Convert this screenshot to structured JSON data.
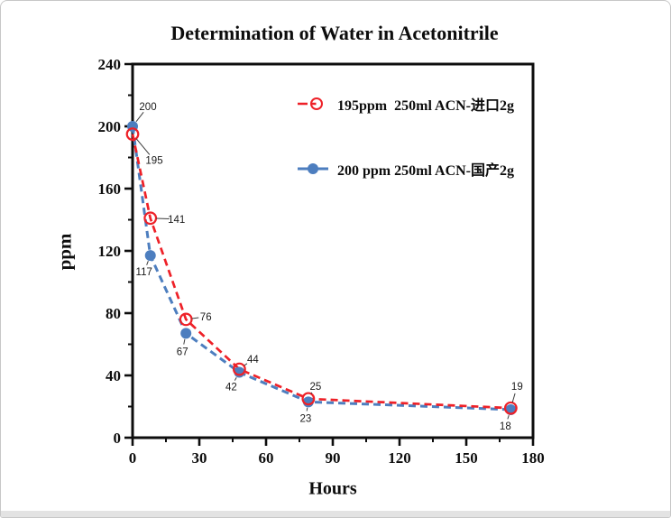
{
  "frame": {
    "background": "#ffffff",
    "border_color": "#c7c7c7",
    "bottom_strip_color": "#e3e3e3"
  },
  "chart_data": {
    "type": "line",
    "title": "Determination of Water in Acetonitrile",
    "xlabel": "Hours",
    "ylabel": "ppm",
    "xlim": [
      0,
      180
    ],
    "ylim": [
      0,
      240
    ],
    "x_major_ticks": [
      0,
      30,
      60,
      90,
      120,
      150,
      180
    ],
    "x_minor_step": 15,
    "y_major_ticks": [
      0,
      40,
      80,
      120,
      160,
      200,
      240
    ],
    "y_minor_step": 20,
    "grid": false,
    "axis_color": "#0d0d0d",
    "legend_position": "inside-top-center",
    "x": [
      0,
      8,
      24,
      48,
      79,
      170
    ],
    "series": [
      {
        "key": "imported",
        "name": "195ppm  250ml ACN-进口2g",
        "color": "#ee2128",
        "marker": "open-circle",
        "line_style": "dashed",
        "values": [
          195,
          141,
          76,
          44,
          25,
          19
        ],
        "label_offsets": [
          [
            24,
            29
          ],
          [
            29,
            1
          ],
          [
            22,
            -3
          ],
          [
            15,
            -11
          ],
          [
            8,
            -14
          ],
          [
            7,
            -24
          ]
        ]
      },
      {
        "key": "domestic",
        "name": "200 ppm 250ml ACN-国产2g",
        "color": "#4d7ebf",
        "marker": "filled-circle",
        "line_style": "dashed",
        "values": [
          200,
          117,
          67,
          42,
          23,
          18
        ],
        "label_offsets": [
          [
            17,
            -22
          ],
          [
            -7,
            18
          ],
          [
            -4,
            20
          ],
          [
            -9,
            16
          ],
          [
            -3,
            18
          ],
          [
            -6,
            18
          ]
        ]
      }
    ]
  }
}
